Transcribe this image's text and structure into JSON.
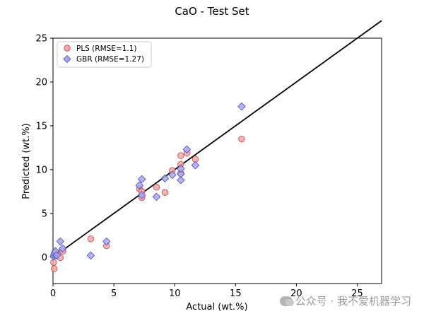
{
  "chart_data": {
    "type": "scatter",
    "title": "CaO - Test Set",
    "xlabel": "Actual (wt.%)",
    "ylabel": "Predicted (wt.%)",
    "xlim": [
      0,
      27
    ],
    "ylim": [
      -3,
      25
    ],
    "xticks": [
      0,
      5,
      10,
      15,
      20,
      25
    ],
    "yticks": [
      0,
      5,
      10,
      15,
      20,
      25
    ],
    "grid": false,
    "legend_position": "top-left",
    "reference_line": {
      "from": [
        0,
        0
      ],
      "to": [
        27,
        27
      ],
      "color": "#000000"
    },
    "series": [
      {
        "name": "PLS (RMSE=1.1)",
        "marker": "circle",
        "fill": "#f4a6a6",
        "stroke": "#b84b4b",
        "points": [
          [
            0.05,
            -0.6
          ],
          [
            0.1,
            -1.3
          ],
          [
            0.15,
            0.2
          ],
          [
            0.25,
            0.3
          ],
          [
            0.4,
            0.5
          ],
          [
            0.6,
            -0.05
          ],
          [
            0.8,
            0.7
          ],
          [
            3.1,
            2.1
          ],
          [
            4.4,
            1.3
          ],
          [
            7.1,
            7.8
          ],
          [
            7.3,
            7.5
          ],
          [
            7.3,
            6.8
          ],
          [
            8.5,
            8.0
          ],
          [
            9.2,
            7.4
          ],
          [
            9.8,
            9.9
          ],
          [
            10.5,
            10.6
          ],
          [
            10.5,
            11.6
          ],
          [
            10.5,
            9.6
          ],
          [
            11.0,
            11.9
          ],
          [
            11.7,
            11.2
          ],
          [
            15.5,
            13.5
          ]
        ]
      },
      {
        "name": "GBR (RMSE=1.27)",
        "marker": "diamond",
        "fill": "#a8a8f0",
        "stroke": "#4a4ab8",
        "points": [
          [
            0.05,
            0.1
          ],
          [
            0.1,
            0.3
          ],
          [
            0.15,
            0.5
          ],
          [
            0.2,
            0.7
          ],
          [
            0.3,
            0.2
          ],
          [
            0.6,
            1.8
          ],
          [
            0.8,
            1.0
          ],
          [
            3.1,
            0.2
          ],
          [
            4.4,
            1.8
          ],
          [
            7.1,
            8.2
          ],
          [
            7.3,
            8.9
          ],
          [
            7.3,
            7.1
          ],
          [
            8.5,
            6.9
          ],
          [
            9.2,
            9.0
          ],
          [
            9.8,
            9.4
          ],
          [
            10.5,
            9.5
          ],
          [
            10.5,
            8.8
          ],
          [
            10.5,
            10.1
          ],
          [
            11.0,
            12.3
          ],
          [
            11.7,
            10.5
          ],
          [
            15.5,
            17.2
          ]
        ]
      }
    ]
  },
  "watermark": {
    "text": "公众号 · 我不爱机器学习"
  }
}
